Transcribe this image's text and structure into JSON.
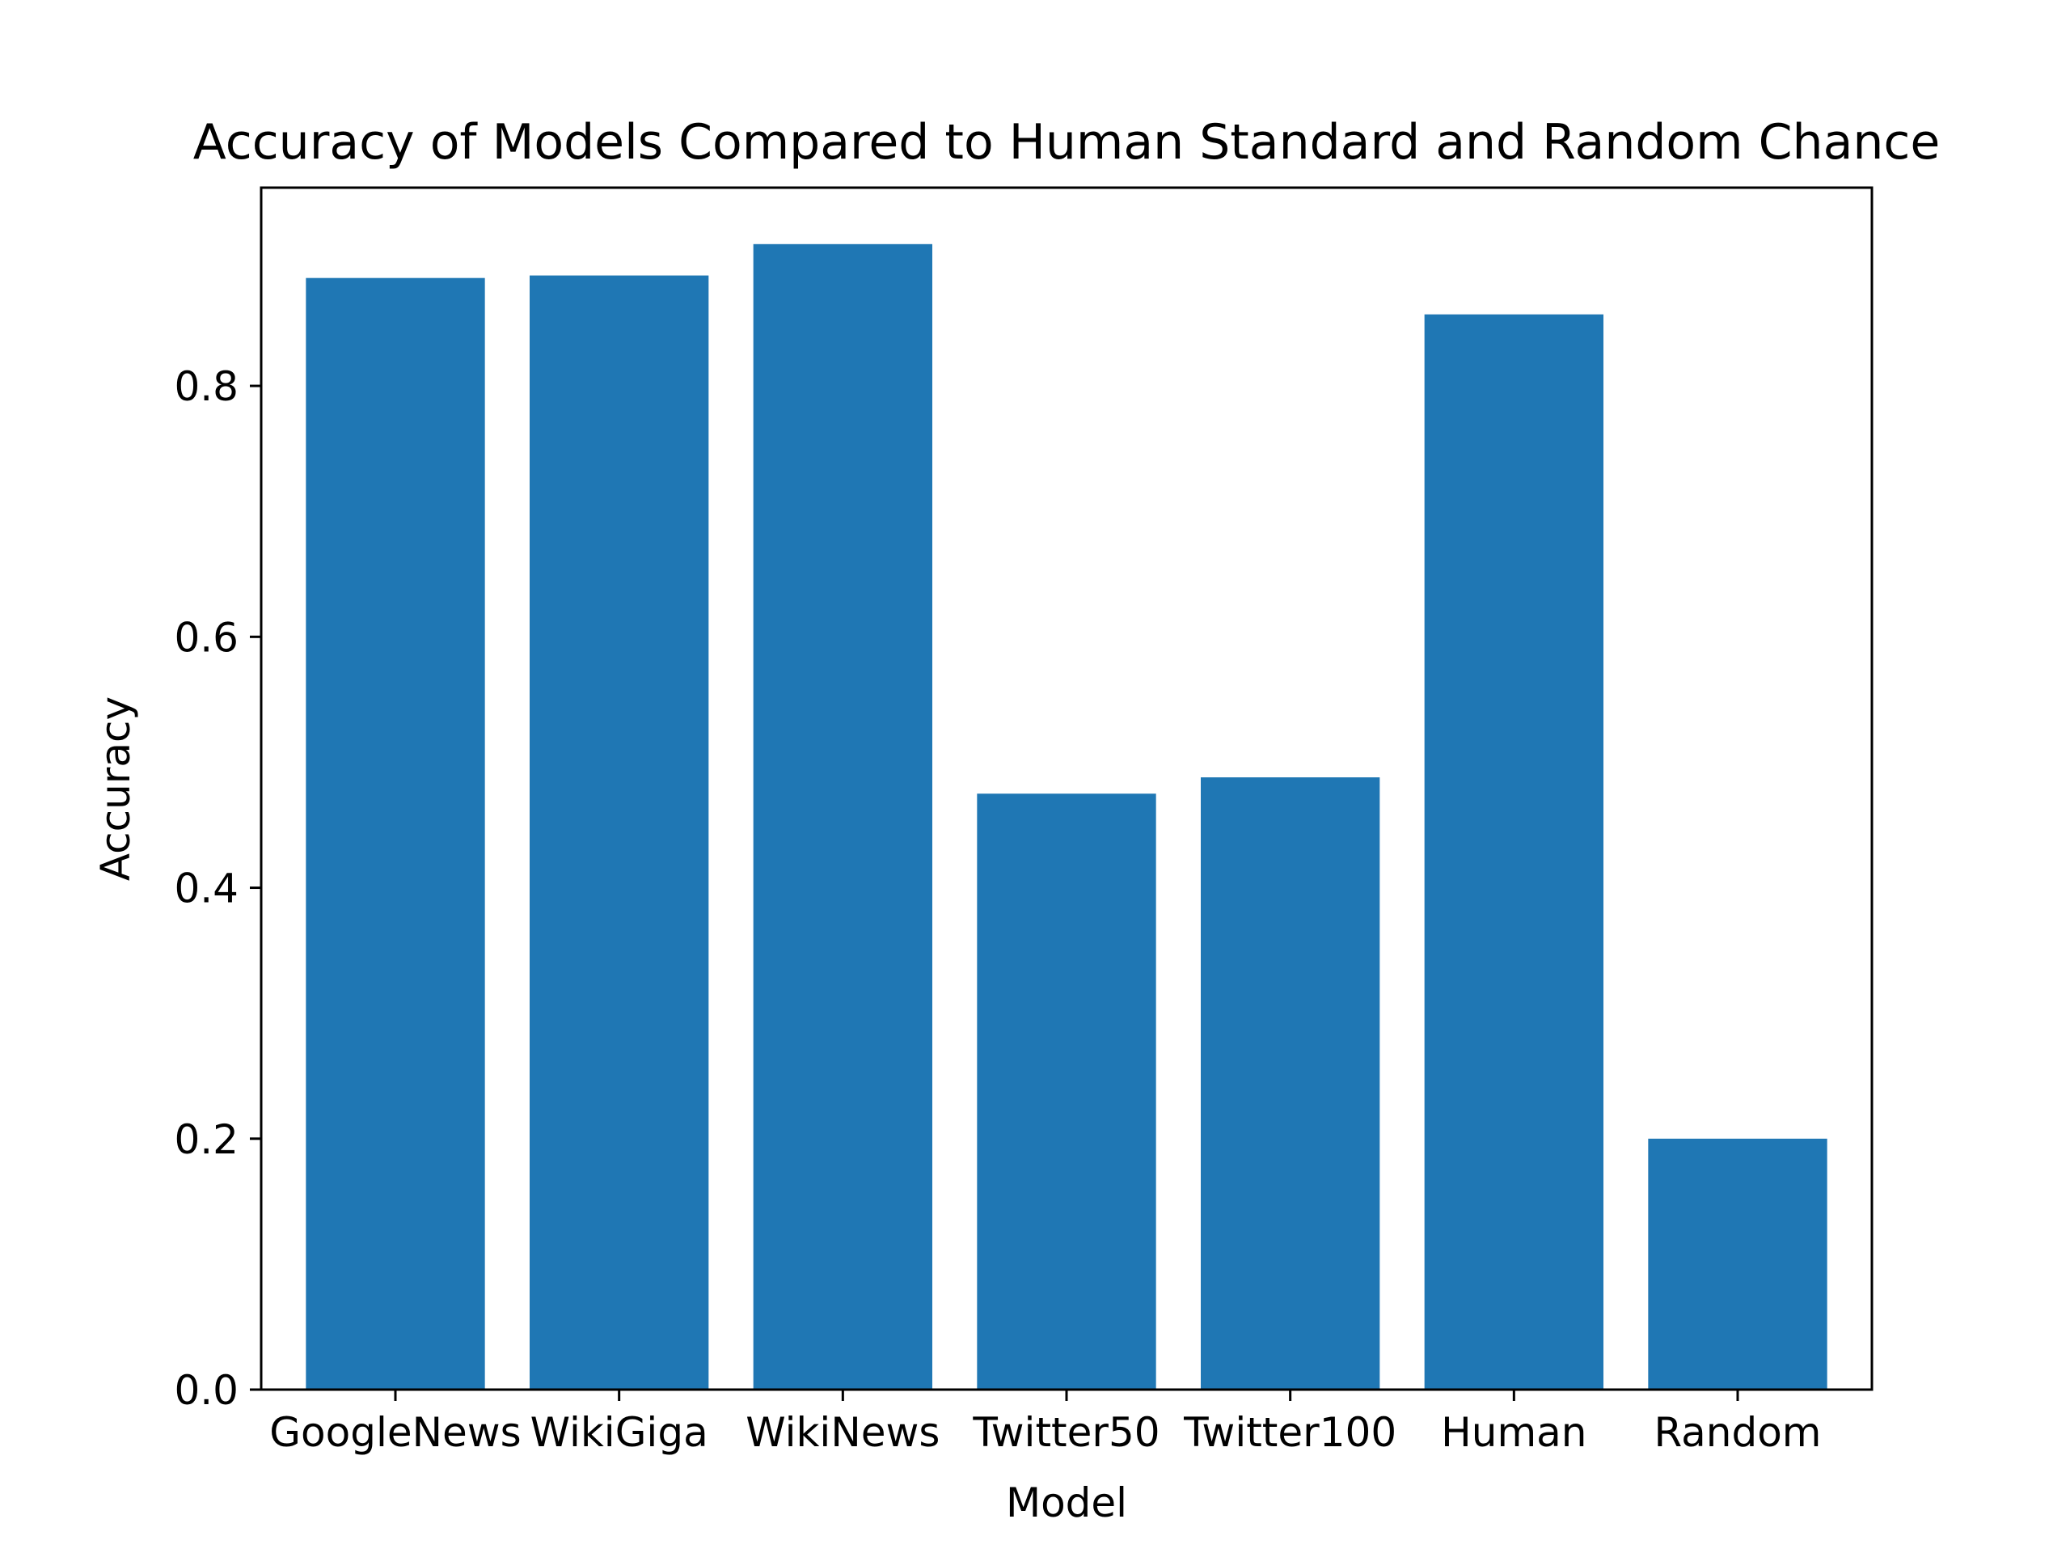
{
  "chart_data": {
    "type": "bar",
    "title": "Accuracy of Models Compared to Human Standard and Random Chance",
    "xlabel": "Model",
    "ylabel": "Accuracy",
    "categories": [
      "GoogleNews",
      "WikiGiga",
      "WikiNews",
      "Twitter50",
      "Twitter100",
      "Human",
      "Random"
    ],
    "values": [
      0.886,
      0.888,
      0.913,
      0.475,
      0.488,
      0.857,
      0.2
    ],
    "ylim": [
      0,
      0.958
    ],
    "yticks": [
      0.0,
      0.2,
      0.4,
      0.6,
      0.8
    ],
    "ytick_labels": [
      "0.0",
      "0.2",
      "0.4",
      "0.6",
      "0.8"
    ],
    "bar_color": "#1f77b4",
    "grid": false,
    "legend": null
  }
}
